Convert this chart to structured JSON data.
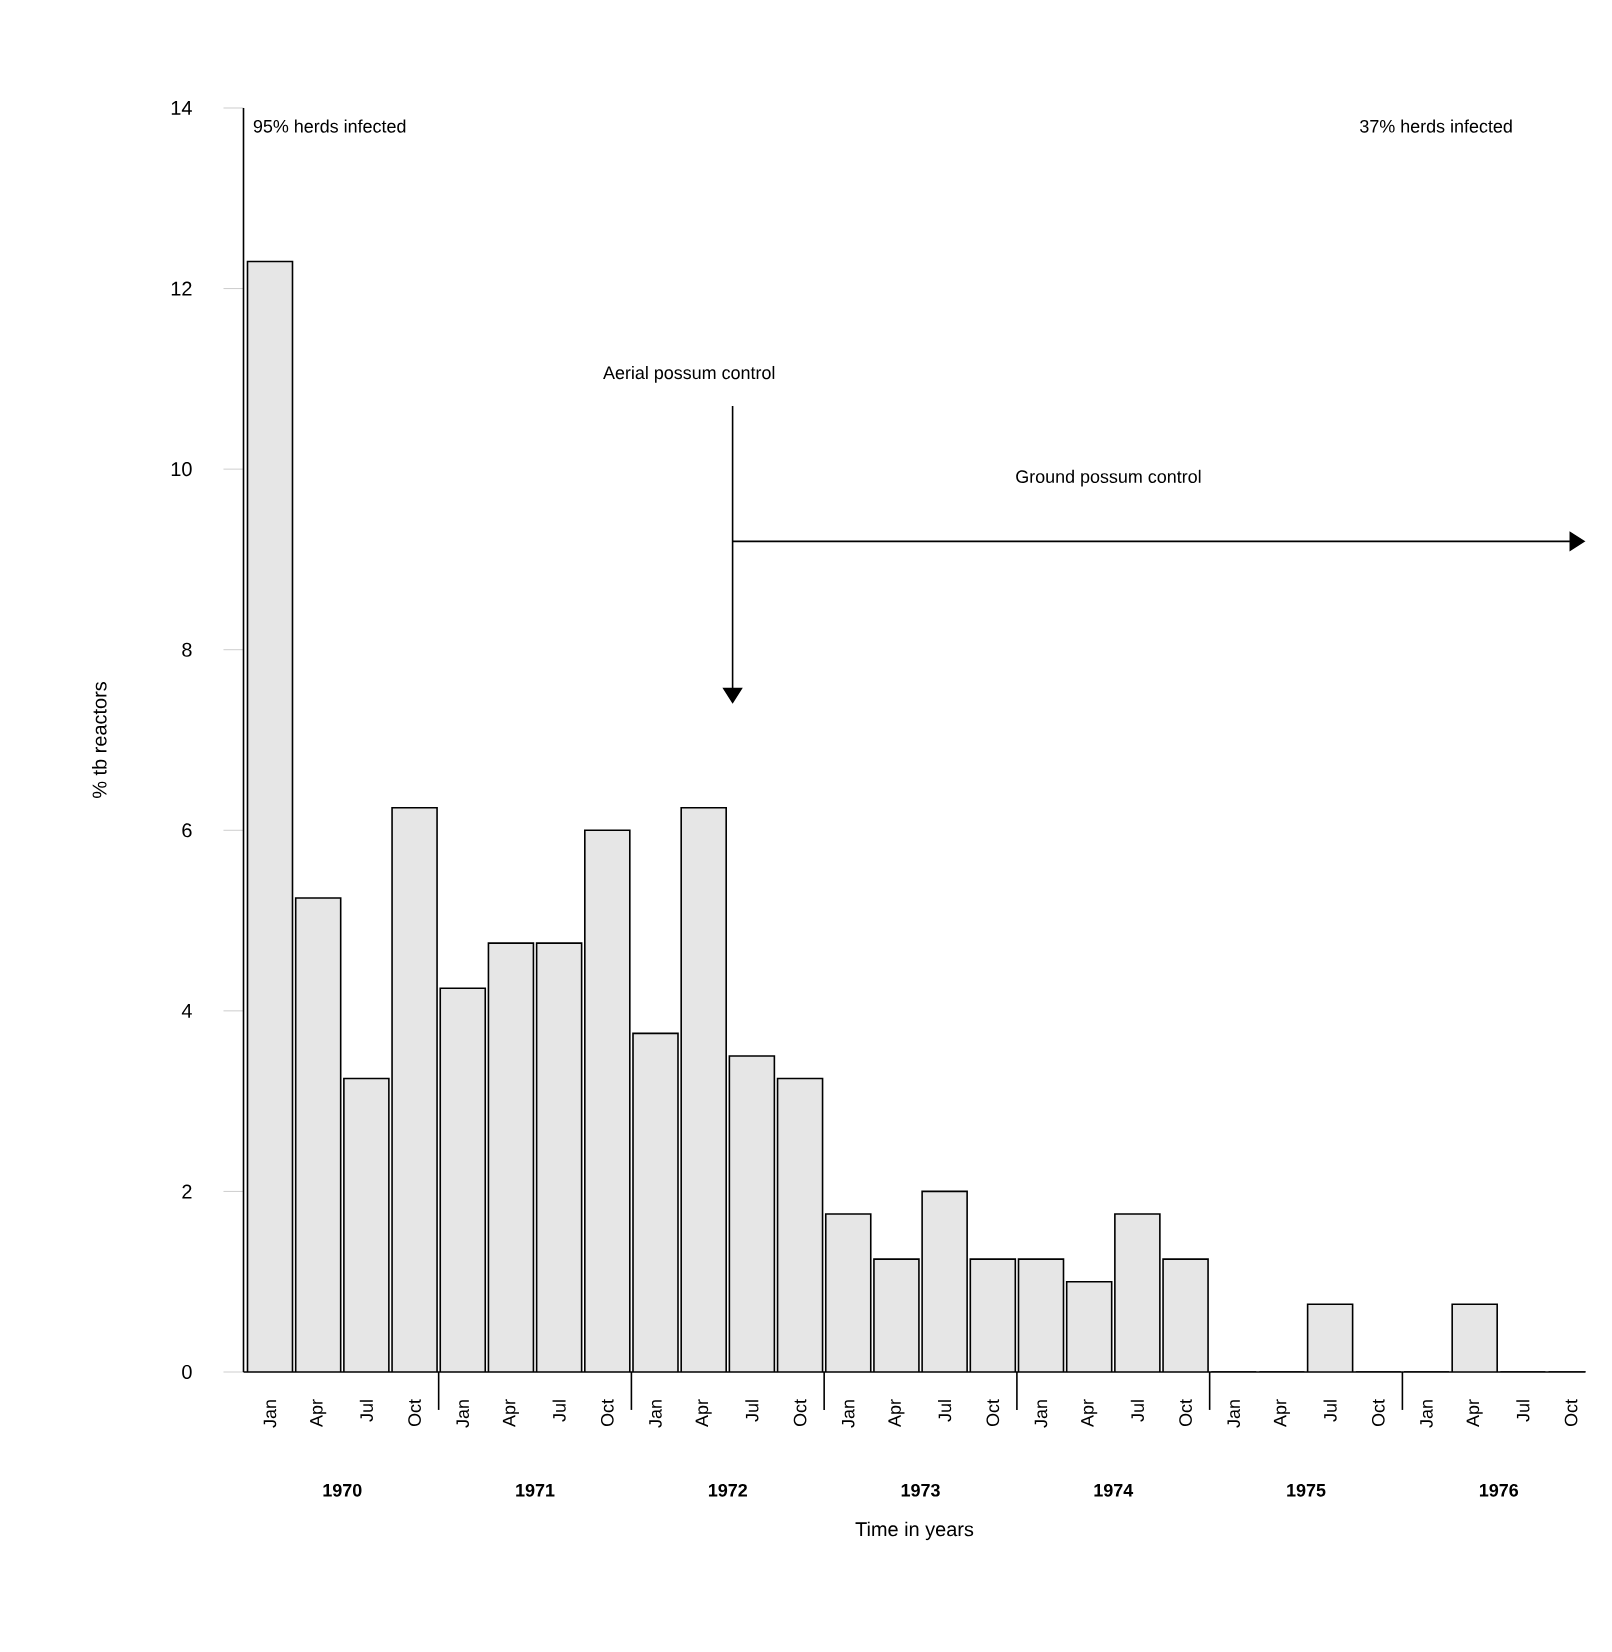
{
  "chart_data": {
    "type": "bar",
    "xlabel": "Time in years",
    "ylabel": "% tb reactors",
    "color": "#e6e6e6",
    "categories": [
      "Jan",
      "Apr",
      "Jul",
      "Oct",
      "Jan",
      "Apr",
      "Jul",
      "Oct",
      "Jan",
      "Apr",
      "Jul",
      "Oct",
      "Jan",
      "Apr",
      "Jul",
      "Oct",
      "Jan",
      "Apr",
      "Jul",
      "Oct",
      "Jan",
      "Apr",
      "Jul",
      "Oct",
      "Jan",
      "Apr",
      "Jul",
      "Oct"
    ],
    "values": [
      12.3,
      5.25,
      3.25,
      6.25,
      4.25,
      4.75,
      4.75,
      6.0,
      3.75,
      6.25,
      3.5,
      3.25,
      1.75,
      1.25,
      2.0,
      1.25,
      1.25,
      1.0,
      1.75,
      1.25,
      0,
      0,
      0.75,
      0,
      0,
      0.75,
      0,
      0
    ],
    "ylim": [
      0,
      14
    ],
    "yticks": [
      0,
      2,
      4,
      6,
      8,
      10,
      12,
      14
    ],
    "grid": false,
    "annotations": [
      "95% herds infected",
      "37% herds infected",
      "Aerial possum control",
      "Ground possum control",
      "1970",
      "1971",
      "1972",
      "1973",
      "1974",
      "1975",
      "1976"
    ]
  }
}
